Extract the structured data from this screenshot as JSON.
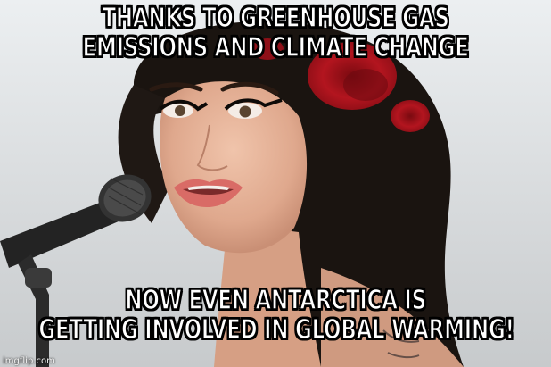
{
  "meme": {
    "top_caption": {
      "line1": "THANKS TO GREENHOUSE GAS",
      "line2": "EMISSIONS AND CLIMATE CHANGE"
    },
    "bottom_caption": {
      "line1": "NOW EVEN ANTARCTICA IS",
      "line2": "GETTING INVOLVED IN GLOBAL WARMING!"
    },
    "watermark": "imgflip.com"
  },
  "colors": {
    "caption_fill": "#ffffff",
    "caption_stroke": "#000000",
    "hair": "#1a1410",
    "rose": "#b0141e",
    "skin": "#e7b49a",
    "lips": "#d96b66",
    "mic_body": "#2b2b2b"
  },
  "icons": {
    "microphone": "microphone-icon",
    "rose": "rose-icon"
  }
}
